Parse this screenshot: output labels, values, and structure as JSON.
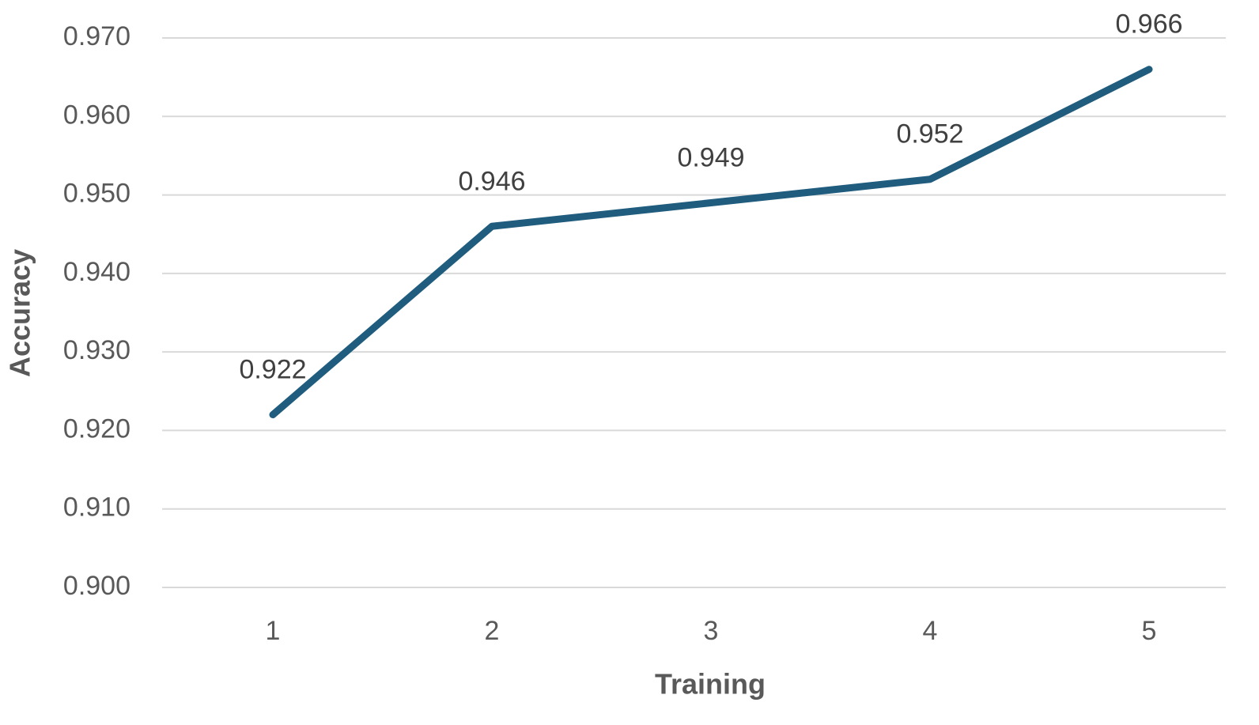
{
  "chart_data": {
    "type": "line",
    "x_label": "Training",
    "y_label": "Accuracy",
    "categories": [
      "1",
      "2",
      "3",
      "4",
      "5"
    ],
    "series": [
      {
        "name": "Accuracy",
        "color": "#1f5c7e",
        "values": [
          0.922,
          0.946,
          0.949,
          0.952,
          0.966
        ]
      }
    ],
    "ylim": [
      0.9,
      0.97
    ],
    "yticks": [
      {
        "value": 0.9,
        "label": "0.900"
      },
      {
        "value": 0.91,
        "label": "0.910"
      },
      {
        "value": 0.92,
        "label": "0.920"
      },
      {
        "value": 0.93,
        "label": "0.930"
      },
      {
        "value": 0.94,
        "label": "0.940"
      },
      {
        "value": 0.95,
        "label": "0.950"
      },
      {
        "value": 0.96,
        "label": "0.960"
      },
      {
        "value": 0.97,
        "label": "0.970"
      }
    ],
    "grid": true
  }
}
